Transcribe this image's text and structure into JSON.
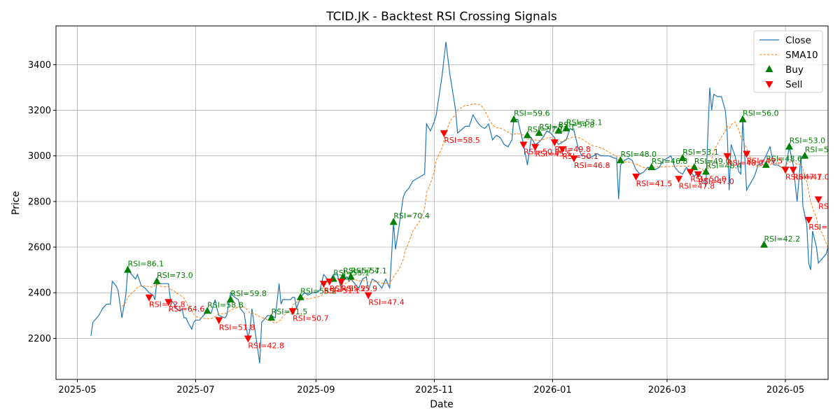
{
  "chart_data": {
    "type": "line",
    "title": "TCID.JK - Backtest RSI Crossing Signals",
    "xlabel": "Date",
    "ylabel": "Price",
    "xlim": [
      "2025-04-20",
      "2026-05-23"
    ],
    "ylim": [
      2020,
      3570
    ],
    "x_ticks": [
      "2025-05-01",
      "2025-07-01",
      "2025-09-01",
      "2025-11-01",
      "2026-01-01",
      "2026-03-01",
      "2026-05-01"
    ],
    "x_tick_labels": [
      "2025-05",
      "2025-07",
      "2025-09",
      "2025-11",
      "2026-01",
      "2026-03",
      "2026-05"
    ],
    "y_ticks": [
      2200,
      2400,
      2600,
      2800,
      3000,
      3200,
      3400
    ],
    "grid": true,
    "legend_position": "top-right",
    "colors": {
      "close": "#1f77b4",
      "sma": "#ff7f0e",
      "buy": "#008000",
      "sell": "#ff0000"
    },
    "series": [
      {
        "name": "Close",
        "style": "solid",
        "points": [
          [
            "2025-05-08",
            2210
          ],
          [
            "2025-05-09",
            2270
          ],
          [
            "2025-05-12",
            2300
          ],
          [
            "2025-05-14",
            2330
          ],
          [
            "2025-05-16",
            2350
          ],
          [
            "2025-05-18",
            2350
          ],
          [
            "2025-05-19",
            2450
          ],
          [
            "2025-05-21",
            2430
          ],
          [
            "2025-05-22",
            2410
          ],
          [
            "2025-05-24",
            2290
          ],
          [
            "2025-05-26",
            2390
          ],
          [
            "2025-05-27",
            2500
          ],
          [
            "2025-05-29",
            2480
          ],
          [
            "2025-05-31",
            2460
          ],
          [
            "2025-06-01",
            2480
          ],
          [
            "2025-06-03",
            2430
          ],
          [
            "2025-06-05",
            2420
          ],
          [
            "2025-06-07",
            2400
          ],
          [
            "2025-06-09",
            2390
          ],
          [
            "2025-06-10",
            2370
          ],
          [
            "2025-06-11",
            2450
          ],
          [
            "2025-06-12",
            2440
          ],
          [
            "2025-06-13",
            2440
          ],
          [
            "2025-06-17",
            2440
          ],
          [
            "2025-06-18",
            2370
          ],
          [
            "2025-06-20",
            2350
          ],
          [
            "2025-06-21",
            2330
          ],
          [
            "2025-06-23",
            2320
          ],
          [
            "2025-06-24",
            2330
          ],
          [
            "2025-06-25",
            2290
          ],
          [
            "2025-06-26",
            2290
          ],
          [
            "2025-06-27",
            2270
          ],
          [
            "2025-06-29",
            2240
          ],
          [
            "2025-06-30",
            2270
          ],
          [
            "2025-07-01",
            2280
          ],
          [
            "2025-07-03",
            2280
          ],
          [
            "2025-07-05",
            2300
          ],
          [
            "2025-07-07",
            2320
          ],
          [
            "2025-07-08",
            2310
          ],
          [
            "2025-07-09",
            2310
          ],
          [
            "2025-07-11",
            2370
          ],
          [
            "2025-07-12",
            2330
          ],
          [
            "2025-07-13",
            2300
          ],
          [
            "2025-07-16",
            2290
          ],
          [
            "2025-07-17",
            2300
          ],
          [
            "2025-07-19",
            2400
          ],
          [
            "2025-07-21",
            2380
          ],
          [
            "2025-07-23",
            2370
          ],
          [
            "2025-07-24",
            2330
          ],
          [
            "2025-07-26",
            2310
          ],
          [
            "2025-07-28",
            2200
          ],
          [
            "2025-07-29",
            2240
          ],
          [
            "2025-07-30",
            2330
          ],
          [
            "2025-08-03",
            2090
          ],
          [
            "2025-08-04",
            2270
          ],
          [
            "2025-08-07",
            2300
          ],
          [
            "2025-08-09",
            2300
          ],
          [
            "2025-08-11",
            2290
          ],
          [
            "2025-08-13",
            2440
          ],
          [
            "2025-08-14",
            2350
          ],
          [
            "2025-08-15",
            2370
          ],
          [
            "2025-08-17",
            2370
          ],
          [
            "2025-08-19",
            2370
          ],
          [
            "2025-08-20",
            2380
          ],
          [
            "2025-08-21",
            2380
          ],
          [
            "2025-08-22",
            2330
          ],
          [
            "2025-08-24",
            2380
          ],
          [
            "2025-08-26",
            2400
          ],
          [
            "2025-08-28",
            2390
          ],
          [
            "2025-08-30",
            2400
          ],
          [
            "2025-09-01",
            2400
          ],
          [
            "2025-09-03",
            2410
          ],
          [
            "2025-09-05",
            2480
          ],
          [
            "2025-09-08",
            2450
          ],
          [
            "2025-09-10",
            2480
          ],
          [
            "2025-09-12",
            2480
          ],
          [
            "2025-09-14",
            2420
          ],
          [
            "2025-09-15",
            2450
          ],
          [
            "2025-09-17",
            2470
          ],
          [
            "2025-09-18",
            2450
          ],
          [
            "2025-09-19",
            2460
          ],
          [
            "2025-09-21",
            2440
          ],
          [
            "2025-09-23",
            2420
          ],
          [
            "2025-09-25",
            2460
          ],
          [
            "2025-09-27",
            2470
          ],
          [
            "2025-09-28",
            2410
          ],
          [
            "2025-09-30",
            2460
          ],
          [
            "2025-10-02",
            2450
          ],
          [
            "2025-10-04",
            2430
          ],
          [
            "2025-10-05",
            2420
          ],
          [
            "2025-10-07",
            2460
          ],
          [
            "2025-10-09",
            2420
          ],
          [
            "2025-10-11",
            2710
          ],
          [
            "2025-10-12",
            2590
          ],
          [
            "2025-10-14",
            2700
          ],
          [
            "2025-10-16",
            2820
          ],
          [
            "2025-10-17",
            2840
          ],
          [
            "2025-10-19",
            2860
          ],
          [
            "2025-10-21",
            2890
          ],
          [
            "2025-10-25",
            2910
          ],
          [
            "2025-10-27",
            2920
          ],
          [
            "2025-10-28",
            3140
          ],
          [
            "2025-10-30",
            3110
          ],
          [
            "2025-11-01",
            3150
          ],
          [
            "2025-11-02",
            3180
          ],
          [
            "2025-11-05",
            3350
          ],
          [
            "2025-11-07",
            3500
          ],
          [
            "2025-11-09",
            3360
          ],
          [
            "2025-11-12",
            3200
          ],
          [
            "2025-11-13",
            3100
          ],
          [
            "2025-11-17",
            3130
          ],
          [
            "2025-11-19",
            3130
          ],
          [
            "2025-11-21",
            3180
          ],
          [
            "2025-11-23",
            3150
          ],
          [
            "2025-11-25",
            3130
          ],
          [
            "2025-11-27",
            3120
          ],
          [
            "2025-11-29",
            3140
          ],
          [
            "2025-12-01",
            3070
          ],
          [
            "2025-12-03",
            3090
          ],
          [
            "2025-12-05",
            3080
          ],
          [
            "2025-12-07",
            3050
          ],
          [
            "2025-12-09",
            3040
          ],
          [
            "2025-12-11",
            3070
          ],
          [
            "2025-12-12",
            3160
          ],
          [
            "2025-12-14",
            3160
          ],
          [
            "2025-12-17",
            3050
          ],
          [
            "2025-12-19",
            2960
          ],
          [
            "2025-12-21",
            3080
          ],
          [
            "2025-12-23",
            3050
          ],
          [
            "2025-12-25",
            3060
          ],
          [
            "2025-12-27",
            3080
          ],
          [
            "2025-12-29",
            3110
          ],
          [
            "2025-12-31",
            3100
          ],
          [
            "2026-01-02",
            3080
          ],
          [
            "2026-01-04",
            3050
          ],
          [
            "2026-01-06",
            3060
          ],
          [
            "2026-01-08",
            3070
          ],
          [
            "2026-01-10",
            3120
          ],
          [
            "2026-01-12",
            3110
          ],
          [
            "2026-01-14",
            3040
          ],
          [
            "2026-01-16",
            3000
          ],
          [
            "2026-01-18",
            3000
          ],
          [
            "2026-01-20",
            2990
          ],
          [
            "2026-01-22",
            3000
          ],
          [
            "2026-01-24",
            3010
          ],
          [
            "2026-01-26",
            3000
          ],
          [
            "2026-01-28",
            3000
          ],
          [
            "2026-01-30",
            3000
          ],
          [
            "2026-02-02",
            2990
          ],
          [
            "2026-02-03",
            2990
          ],
          [
            "2026-02-04",
            2810
          ],
          [
            "2026-02-05",
            2960
          ],
          [
            "2026-02-07",
            2980
          ],
          [
            "2026-02-09",
            2990
          ],
          [
            "2026-02-11",
            2980
          ],
          [
            "2026-02-13",
            2940
          ],
          [
            "2026-02-15",
            2920
          ],
          [
            "2026-02-17",
            2930
          ],
          [
            "2026-02-19",
            2950
          ],
          [
            "2026-02-21",
            2940
          ],
          [
            "2026-02-23",
            2940
          ],
          [
            "2026-02-25",
            2950
          ],
          [
            "2026-02-27",
            2980
          ],
          [
            "2026-03-01",
            2990
          ],
          [
            "2026-03-03",
            3000
          ],
          [
            "2026-03-05",
            2950
          ],
          [
            "2026-03-07",
            2930
          ],
          [
            "2026-03-09",
            2920
          ],
          [
            "2026-03-11",
            2950
          ],
          [
            "2026-03-13",
            2930
          ],
          [
            "2026-03-15",
            2910
          ],
          [
            "2026-03-17",
            2930
          ],
          [
            "2026-03-19",
            2900
          ],
          [
            "2026-03-21",
            2870
          ],
          [
            "2026-03-23",
            3300
          ],
          [
            "2026-03-24",
            3200
          ],
          [
            "2026-03-25",
            3270
          ],
          [
            "2026-03-27",
            3260
          ],
          [
            "2026-03-29",
            3260
          ],
          [
            "2026-03-31",
            3200
          ],
          [
            "2026-04-01",
            3100
          ],
          [
            "2026-04-02",
            2850
          ],
          [
            "2026-04-03",
            3050
          ],
          [
            "2026-04-05",
            3000
          ],
          [
            "2026-04-07",
            2930
          ],
          [
            "2026-04-08",
            2920
          ],
          [
            "2026-04-09",
            3160
          ],
          [
            "2026-04-11",
            2850
          ],
          [
            "2026-04-13",
            2880
          ],
          [
            "2026-04-15",
            2910
          ],
          [
            "2026-04-17",
            2960
          ],
          [
            "2026-04-19",
            2970
          ],
          [
            "2026-04-21",
            3000
          ],
          [
            "2026-04-23",
            3040
          ],
          [
            "2026-04-25",
            2960
          ],
          [
            "2026-04-27",
            2960
          ],
          [
            "2026-04-29",
            2950
          ],
          [
            "2026-05-01",
            2940
          ],
          [
            "2026-05-03",
            3040
          ],
          [
            "2026-05-05",
            2960
          ],
          [
            "2026-05-07",
            2800
          ],
          [
            "2026-05-09",
            3000
          ],
          [
            "2026-05-10",
            2780
          ],
          [
            "2026-05-11",
            2740
          ],
          [
            "2026-05-12",
            2700
          ],
          [
            "2026-05-13",
            2530
          ],
          [
            "2026-05-14",
            2500
          ],
          [
            "2026-05-15",
            2670
          ],
          [
            "2026-05-17",
            2600
          ],
          [
            "2026-05-18",
            2530
          ],
          [
            "2026-05-20",
            2550
          ],
          [
            "2026-05-22",
            2570
          ],
          [
            "2026-05-23",
            2600
          ]
        ]
      },
      {
        "name": "SMA10",
        "style": "dashed",
        "points": []
      }
    ],
    "buy_signals": [],
    "sell_signals": [],
    "legend": [
      "Close",
      "SMA10",
      "Buy",
      "Sell"
    ]
  }
}
